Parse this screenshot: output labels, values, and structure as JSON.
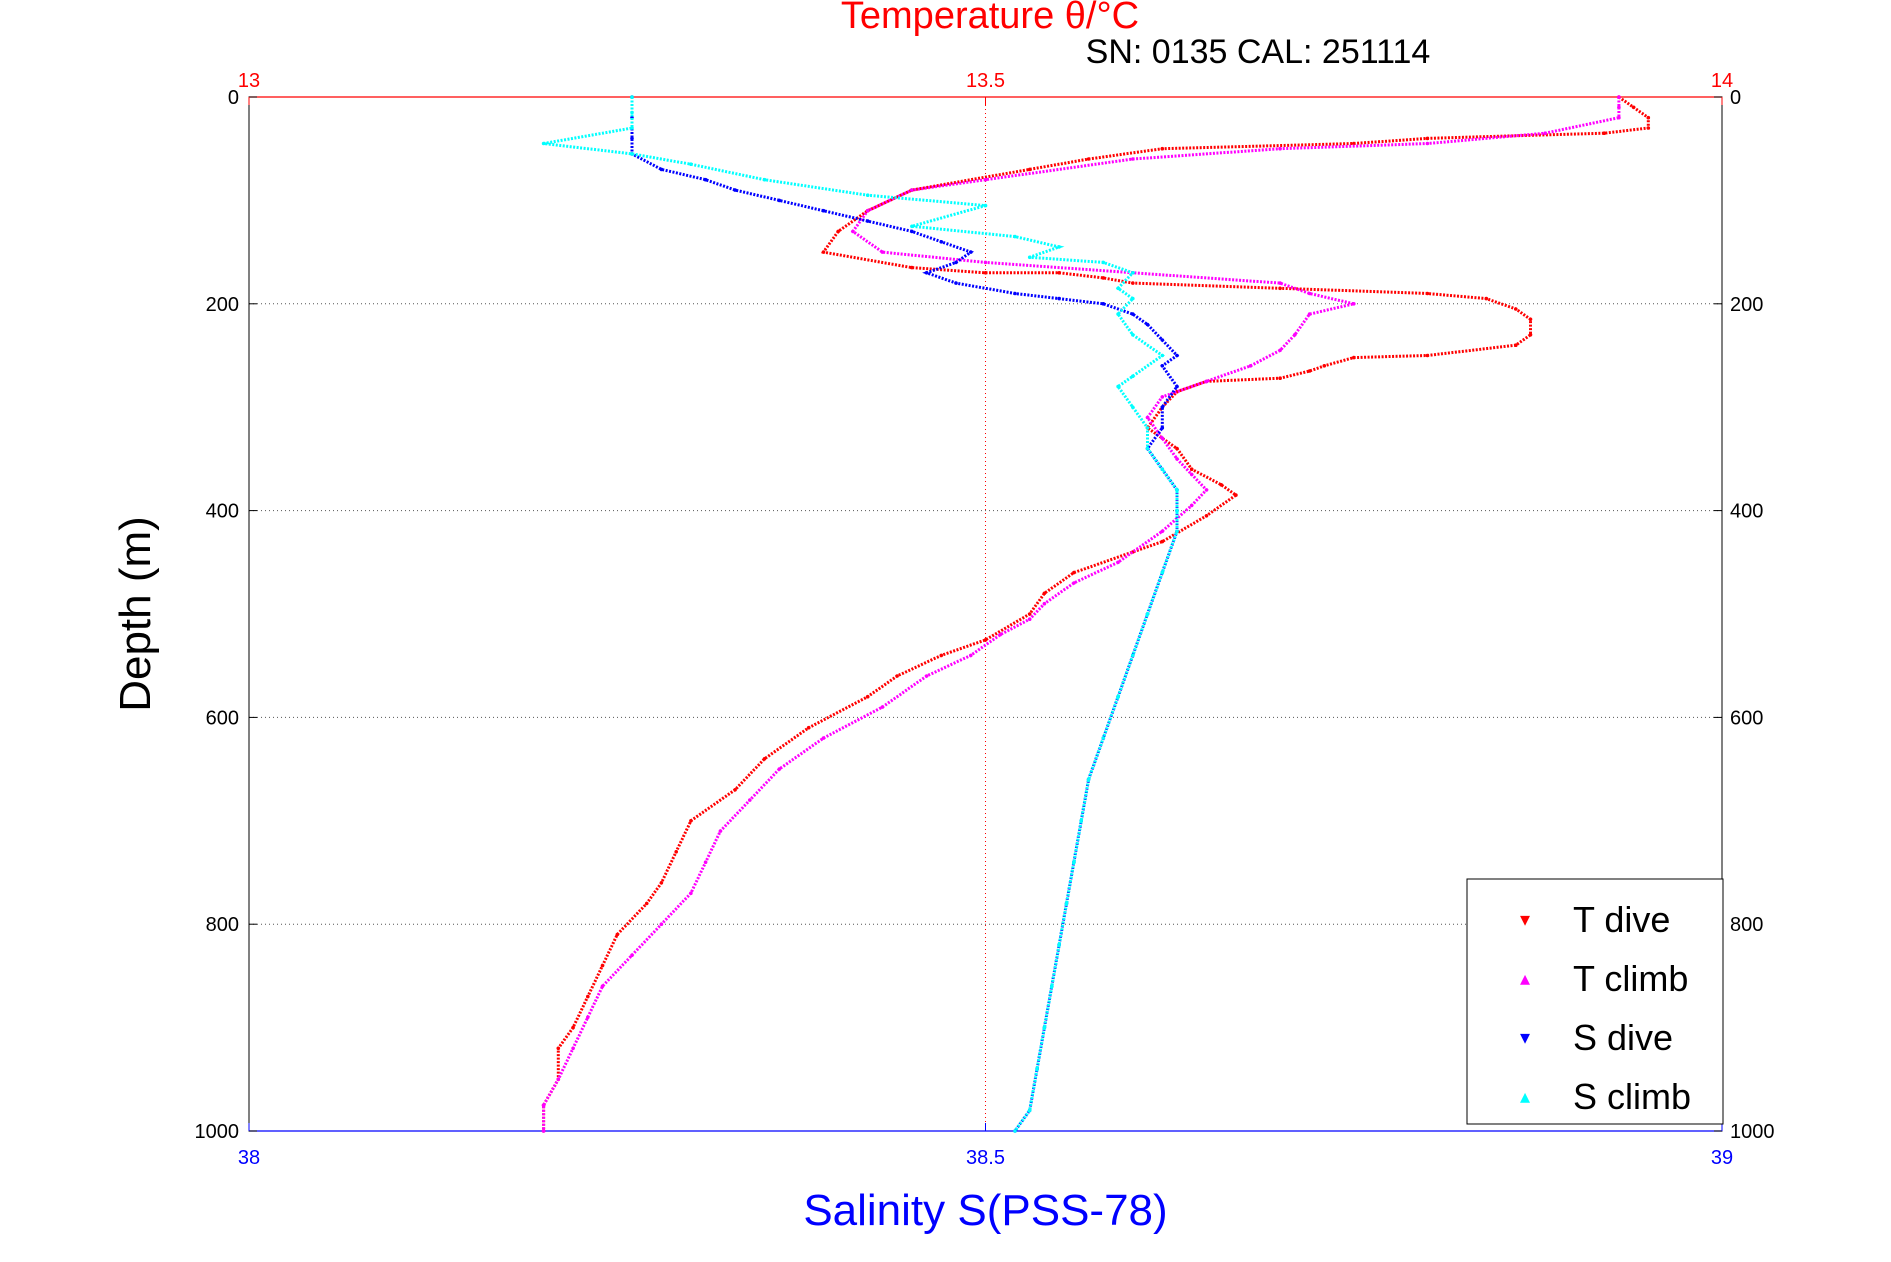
{
  "chart_data": {
    "type": "scatter",
    "title": "Temperature θ/°C",
    "subtitle": "SN: 0135  CAL: 251114",
    "ylabel": "Depth (m)",
    "xlabel": "Salinity S(PSS-78)",
    "ylim": [
      0,
      1000
    ],
    "y_inverted": true,
    "y_ticks": [
      "0",
      "200",
      "400",
      "600",
      "800",
      "1000"
    ],
    "x_bottom": {
      "label": "Salinity S(PSS-78)",
      "lim": [
        38,
        39
      ],
      "ticks": [
        "38",
        "38.5",
        "39"
      ],
      "color": "#0000ff"
    },
    "x_top": {
      "label": "Temperature θ/°C",
      "lim": [
        13,
        14
      ],
      "ticks": [
        "13",
        "13.5",
        "14"
      ],
      "color": "#ff0000"
    },
    "grid": true,
    "legend_position": "bottom-right",
    "series": [
      {
        "name": "T dive",
        "axis": "temperature",
        "color": "#ff0000",
        "marker": "▾",
        "points": [
          [
            13.93,
            0
          ],
          [
            13.94,
            10
          ],
          [
            13.95,
            20
          ],
          [
            13.95,
            30
          ],
          [
            13.92,
            35
          ],
          [
            13.8,
            40
          ],
          [
            13.75,
            45
          ],
          [
            13.62,
            50
          ],
          [
            13.57,
            60
          ],
          [
            13.53,
            70
          ],
          [
            13.45,
            90
          ],
          [
            13.42,
            110
          ],
          [
            13.4,
            130
          ],
          [
            13.39,
            150
          ],
          [
            13.45,
            165
          ],
          [
            13.5,
            170
          ],
          [
            13.55,
            170
          ],
          [
            13.58,
            175
          ],
          [
            13.6,
            180
          ],
          [
            13.7,
            185
          ],
          [
            13.8,
            190
          ],
          [
            13.84,
            195
          ],
          [
            13.86,
            205
          ],
          [
            13.87,
            215
          ],
          [
            13.87,
            230
          ],
          [
            13.86,
            240
          ],
          [
            13.8,
            250
          ],
          [
            13.75,
            252
          ],
          [
            13.73,
            260
          ],
          [
            13.72,
            265
          ],
          [
            13.7,
            272
          ],
          [
            13.65,
            275
          ],
          [
            13.63,
            285
          ],
          [
            13.62,
            300
          ],
          [
            13.61,
            320
          ],
          [
            13.63,
            340
          ],
          [
            13.64,
            360
          ],
          [
            13.66,
            375
          ],
          [
            13.67,
            385
          ],
          [
            13.65,
            405
          ],
          [
            13.62,
            430
          ],
          [
            13.6,
            440
          ],
          [
            13.56,
            460
          ],
          [
            13.54,
            480
          ],
          [
            13.53,
            500
          ],
          [
            13.5,
            525
          ],
          [
            13.47,
            540
          ],
          [
            13.44,
            560
          ],
          [
            13.42,
            580
          ],
          [
            13.38,
            610
          ],
          [
            13.35,
            640
          ],
          [
            13.33,
            670
          ],
          [
            13.3,
            700
          ],
          [
            13.29,
            730
          ],
          [
            13.28,
            760
          ],
          [
            13.27,
            780
          ],
          [
            13.25,
            810
          ],
          [
            13.24,
            840
          ],
          [
            13.23,
            870
          ],
          [
            13.22,
            900
          ],
          [
            13.21,
            920
          ],
          [
            13.21,
            950
          ],
          [
            13.2,
            975
          ],
          [
            13.2,
            1000
          ]
        ]
      },
      {
        "name": "T climb",
        "axis": "temperature",
        "color": "#ff00ff",
        "marker": "▴",
        "points": [
          [
            13.93,
            0
          ],
          [
            13.93,
            10
          ],
          [
            13.93,
            20
          ],
          [
            13.88,
            35
          ],
          [
            13.8,
            45
          ],
          [
            13.7,
            50
          ],
          [
            13.6,
            60
          ],
          [
            13.5,
            80
          ],
          [
            13.45,
            90
          ],
          [
            13.42,
            110
          ],
          [
            13.41,
            130
          ],
          [
            13.43,
            150
          ],
          [
            13.5,
            160
          ],
          [
            13.6,
            170
          ],
          [
            13.7,
            180
          ],
          [
            13.72,
            190
          ],
          [
            13.75,
            200
          ],
          [
            13.72,
            210
          ],
          [
            13.71,
            230
          ],
          [
            13.7,
            245
          ],
          [
            13.68,
            260
          ],
          [
            13.65,
            275
          ],
          [
            13.62,
            290
          ],
          [
            13.61,
            310
          ],
          [
            13.62,
            330
          ],
          [
            13.63,
            350
          ],
          [
            13.64,
            365
          ],
          [
            13.65,
            380
          ],
          [
            13.64,
            395
          ],
          [
            13.62,
            420
          ],
          [
            13.59,
            450
          ],
          [
            13.56,
            470
          ],
          [
            13.54,
            490
          ],
          [
            13.53,
            505
          ],
          [
            13.51,
            520
          ],
          [
            13.49,
            540
          ],
          [
            13.46,
            560
          ],
          [
            13.43,
            590
          ],
          [
            13.39,
            620
          ],
          [
            13.36,
            650
          ],
          [
            13.34,
            680
          ],
          [
            13.32,
            710
          ],
          [
            13.31,
            740
          ],
          [
            13.3,
            770
          ],
          [
            13.28,
            800
          ],
          [
            13.26,
            830
          ],
          [
            13.24,
            860
          ],
          [
            13.23,
            890
          ],
          [
            13.22,
            920
          ],
          [
            13.21,
            950
          ],
          [
            13.2,
            975
          ],
          [
            13.2,
            1000
          ]
        ]
      },
      {
        "name": "S dive",
        "axis": "salinity",
        "color": "#0000ff",
        "marker": "▾",
        "points": [
          [
            38.26,
            0
          ],
          [
            38.26,
            20
          ],
          [
            38.26,
            40
          ],
          [
            38.26,
            55
          ],
          [
            38.28,
            70
          ],
          [
            38.31,
            80
          ],
          [
            38.33,
            90
          ],
          [
            38.36,
            100
          ],
          [
            38.39,
            110
          ],
          [
            38.42,
            120
          ],
          [
            38.45,
            130
          ],
          [
            38.47,
            140
          ],
          [
            38.49,
            150
          ],
          [
            38.48,
            160
          ],
          [
            38.46,
            170
          ],
          [
            38.48,
            180
          ],
          [
            38.52,
            190
          ],
          [
            38.55,
            195
          ],
          [
            38.58,
            200
          ],
          [
            38.6,
            210
          ],
          [
            38.61,
            220
          ],
          [
            38.62,
            235
          ],
          [
            38.63,
            250
          ],
          [
            38.62,
            260
          ],
          [
            38.63,
            280
          ],
          [
            38.62,
            300
          ],
          [
            38.62,
            320
          ],
          [
            38.61,
            340
          ],
          [
            38.62,
            360
          ],
          [
            38.63,
            380
          ],
          [
            38.63,
            400
          ],
          [
            38.63,
            420
          ],
          [
            38.62,
            460
          ],
          [
            38.61,
            500
          ],
          [
            38.6,
            540
          ],
          [
            38.59,
            580
          ],
          [
            38.58,
            620
          ],
          [
            38.57,
            660
          ],
          [
            38.565,
            700
          ],
          [
            38.56,
            740
          ],
          [
            38.555,
            780
          ],
          [
            38.55,
            820
          ],
          [
            38.545,
            860
          ],
          [
            38.54,
            900
          ],
          [
            38.535,
            940
          ],
          [
            38.53,
            980
          ],
          [
            38.52,
            1000
          ]
        ]
      },
      {
        "name": "S climb",
        "axis": "salinity",
        "color": "#00ffff",
        "marker": "▴",
        "points": [
          [
            38.26,
            0
          ],
          [
            38.26,
            15
          ],
          [
            38.26,
            30
          ],
          [
            38.2,
            45
          ],
          [
            38.26,
            55
          ],
          [
            38.3,
            65
          ],
          [
            38.35,
            80
          ],
          [
            38.42,
            95
          ],
          [
            38.5,
            105
          ],
          [
            38.45,
            125
          ],
          [
            38.52,
            135
          ],
          [
            38.55,
            145
          ],
          [
            38.53,
            155
          ],
          [
            38.58,
            160
          ],
          [
            38.6,
            170
          ],
          [
            38.59,
            185
          ],
          [
            38.6,
            195
          ],
          [
            38.59,
            210
          ],
          [
            38.6,
            230
          ],
          [
            38.62,
            250
          ],
          [
            38.6,
            270
          ],
          [
            38.59,
            280
          ],
          [
            38.6,
            300
          ],
          [
            38.61,
            320
          ],
          [
            38.61,
            340
          ],
          [
            38.62,
            360
          ],
          [
            38.63,
            380
          ],
          [
            38.63,
            400
          ],
          [
            38.63,
            420
          ],
          [
            38.62,
            460
          ],
          [
            38.61,
            500
          ],
          [
            38.6,
            540
          ],
          [
            38.59,
            580
          ],
          [
            38.58,
            620
          ],
          [
            38.57,
            660
          ],
          [
            38.565,
            700
          ],
          [
            38.56,
            740
          ],
          [
            38.555,
            780
          ],
          [
            38.55,
            820
          ],
          [
            38.545,
            860
          ],
          [
            38.54,
            900
          ],
          [
            38.535,
            940
          ],
          [
            38.53,
            980
          ],
          [
            38.52,
            1000
          ]
        ]
      }
    ]
  }
}
